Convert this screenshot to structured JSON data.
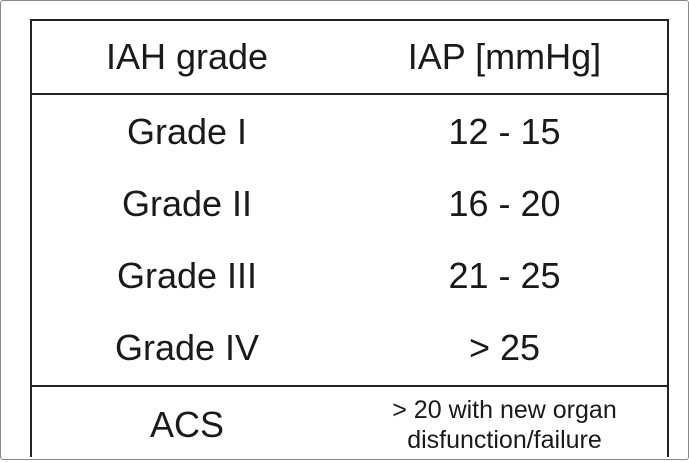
{
  "table": {
    "header": [
      "IAH grade",
      "IAP [mmHg]"
    ],
    "rows": [
      [
        "Grade I",
        "12 - 15"
      ],
      [
        "Grade II",
        "16 - 20"
      ],
      [
        "Grade III",
        "21 - 25"
      ],
      [
        "Grade IV",
        "> 25"
      ]
    ],
    "footer": [
      "ACS",
      "> 20 with new organ disfunction/failure"
    ]
  }
}
